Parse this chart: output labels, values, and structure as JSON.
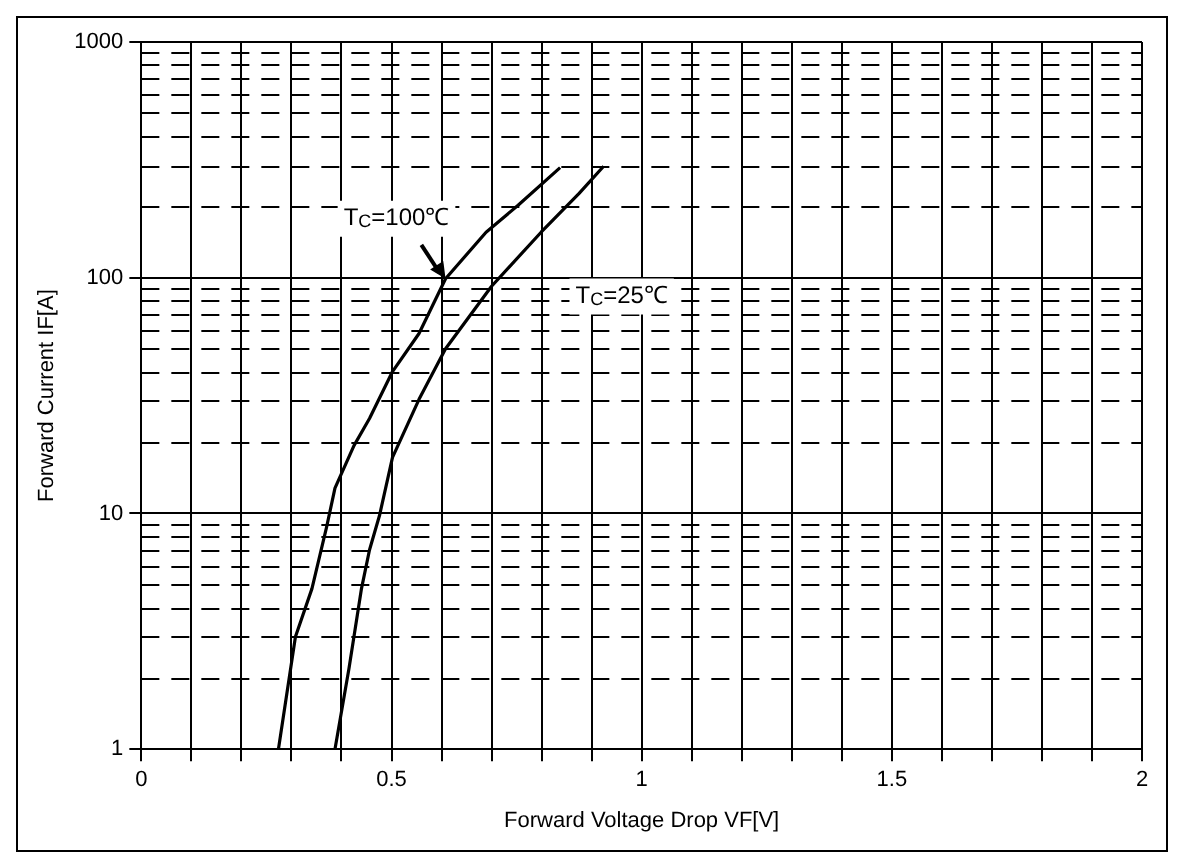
{
  "chart_data": {
    "type": "line",
    "xlabel": "Forward Voltage Drop VF[V]",
    "ylabel": "Forward Current IF[A]",
    "log": "y",
    "grid": true,
    "legend": false,
    "marker": "none",
    "line_style": "solid",
    "xlim": [
      0,
      2
    ],
    "ylim": [
      1,
      1000
    ],
    "xticks": [
      0,
      {
        "value": 0.1,
        "label": null
      },
      {
        "value": 0.2,
        "label": null
      },
      {
        "value": 0.3,
        "label": null
      },
      {
        "value": 0.4,
        "label": null
      },
      0.5,
      {
        "value": 0.6,
        "label": null
      },
      {
        "value": 0.7,
        "label": null
      },
      {
        "value": 0.8,
        "label": null
      },
      {
        "value": 0.9,
        "label": null
      },
      1,
      {
        "value": 1.1,
        "label": null
      },
      {
        "value": 1.2,
        "label": null
      },
      {
        "value": 1.3,
        "label": null
      },
      {
        "value": 1.4,
        "label": null
      },
      1.5,
      {
        "value": 1.6,
        "label": null
      },
      {
        "value": 1.7,
        "label": null
      },
      {
        "value": 1.8,
        "label": null
      },
      {
        "value": 1.9,
        "label": null
      },
      2
    ],
    "yticks": [
      1,
      {
        "value": 2,
        "label": null
      },
      {
        "value": 3,
        "label": null
      },
      {
        "value": 4,
        "label": null
      },
      {
        "value": 5,
        "label": null
      },
      {
        "value": 6,
        "label": null
      },
      {
        "value": 7,
        "label": null
      },
      {
        "value": 8,
        "label": null
      },
      {
        "value": 9,
        "label": null
      },
      10,
      {
        "value": 20,
        "label": null
      },
      {
        "value": 30,
        "label": null
      },
      {
        "value": 40,
        "label": null
      },
      {
        "value": 50,
        "label": null
      },
      {
        "value": 60,
        "label": null
      },
      {
        "value": 70,
        "label": null
      },
      {
        "value": 80,
        "label": null
      },
      {
        "value": 90,
        "label": null
      },
      100,
      {
        "value": 200,
        "label": null
      },
      {
        "value": 300,
        "label": null
      },
      {
        "value": 400,
        "label": null
      },
      {
        "value": 500,
        "label": null
      },
      {
        "value": 600,
        "label": null
      },
      {
        "value": 700,
        "label": null
      },
      {
        "value": 800,
        "label": null
      },
      {
        "value": 900,
        "label": null
      },
      1000
    ],
    "series": [
      {
        "name": "T$_{C}$=100℃",
        "color": "#000000",
        "x": [
          0.274,
          0.308,
          0.341,
          0.37,
          0.387,
          0.425,
          0.456,
          0.502,
          0.555,
          0.608,
          0.689,
          0.753,
          0.837
        ],
        "values": [
          1,
          3,
          4.8,
          8.7,
          12.8,
          19.4,
          25.3,
          40,
          58,
          99,
          156,
          203,
          293
        ]
      },
      {
        "name": "T$_{C}$=25℃",
        "color": "#000000",
        "x": [
          0.387,
          0.415,
          0.44,
          0.456,
          0.476,
          0.502,
          0.555,
          0.608,
          0.7,
          0.799,
          0.875,
          0.924
        ],
        "values": [
          1,
          2.2,
          4.8,
          7,
          9.8,
          17.3,
          30.5,
          50,
          92,
          156,
          228,
          297
        ]
      }
    ]
  }
}
